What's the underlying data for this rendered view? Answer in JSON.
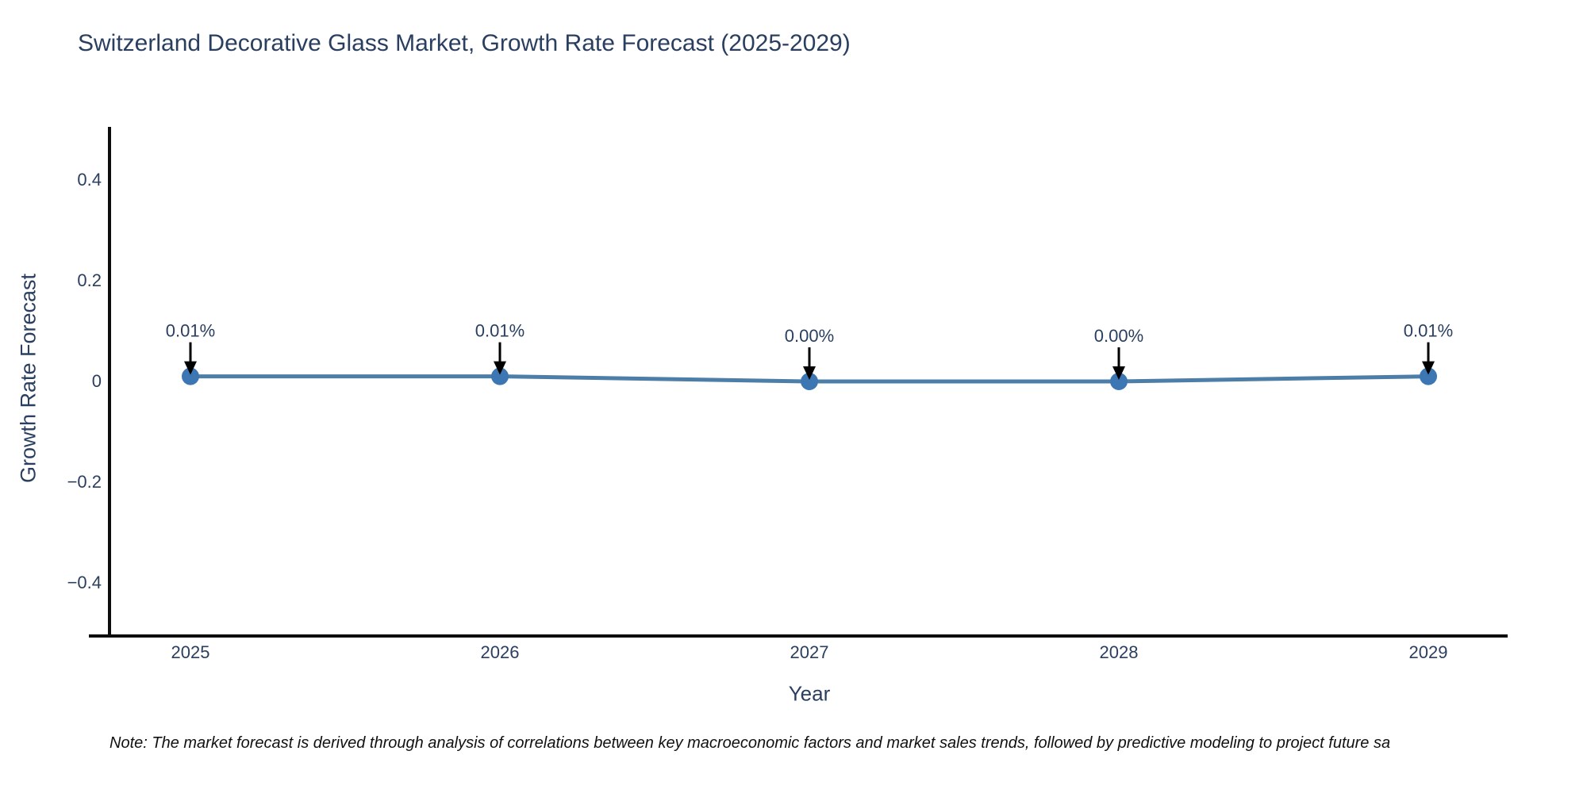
{
  "note": "Note: The market forecast is derived through analysis of correlations between key macroeconomic factors and market sales trends, followed by predictive modeling to project future sa",
  "chart_data": {
    "type": "line",
    "title": "Switzerland Decorative Glass Market, Growth Rate Forecast (2025-2029)",
    "xlabel": "Year",
    "ylabel": "Growth Rate Forecast",
    "x": [
      2025,
      2026,
      2027,
      2028,
      2029
    ],
    "categories": [
      "2025",
      "2026",
      "2027",
      "2028",
      "2029"
    ],
    "values": [
      0.01,
      0.01,
      0.0,
      0.0,
      0.01
    ],
    "point_labels": [
      "0.01%",
      "0.01%",
      "0.00%",
      "0.00%",
      "0.01%"
    ],
    "ylim": [
      -0.5,
      0.5
    ],
    "yticks": [
      {
        "value": 0.4,
        "label": "0.4"
      },
      {
        "value": 0.2,
        "label": "0.2"
      },
      {
        "value": 0,
        "label": "0"
      },
      {
        "value": -0.2,
        "label": "−0.2"
      },
      {
        "value": -0.4,
        "label": "−0.4"
      }
    ],
    "grid": false,
    "legend": "none",
    "colors": {
      "line": "#4d7ea8",
      "marker": "#3c77b3",
      "axis": "#0d0d0d",
      "text": "#2a3f5f",
      "annotation_arrow": "#000000"
    }
  }
}
